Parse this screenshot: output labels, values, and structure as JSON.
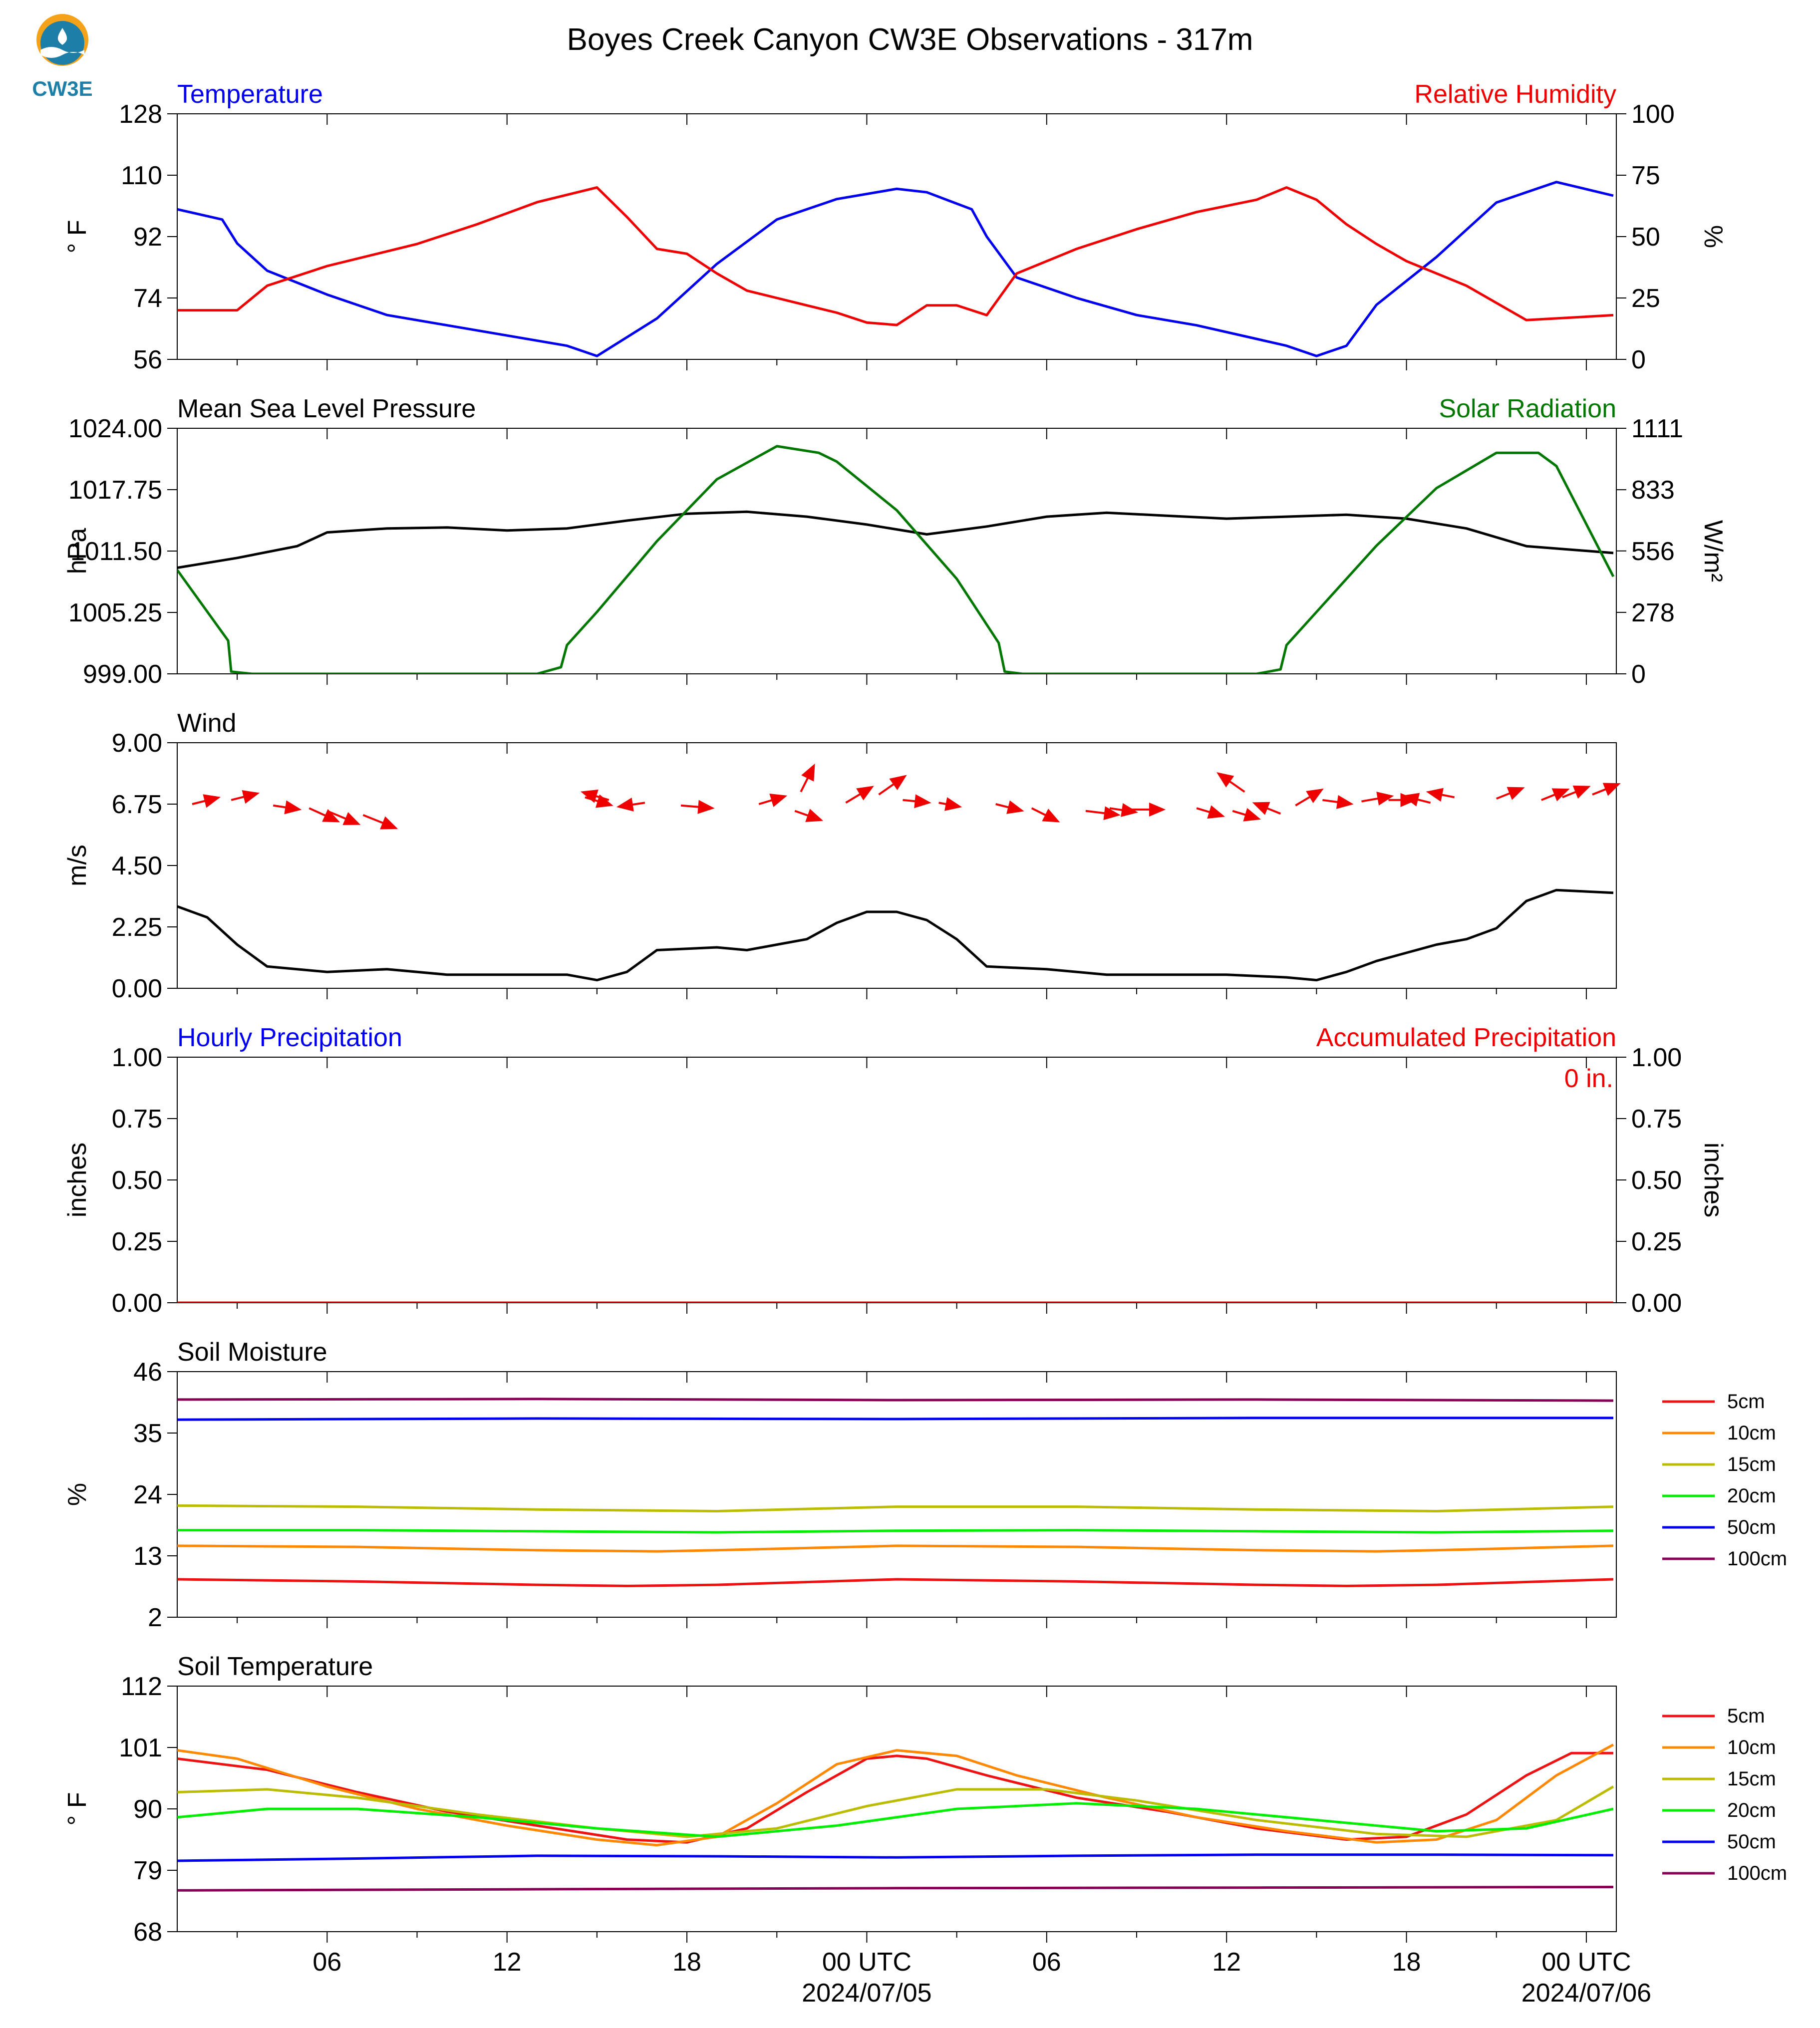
{
  "header": {
    "title": "Boyes Creek Canyon CW3E Observations - 317m",
    "logo_text": "CW3E"
  },
  "colors": {
    "blue": "#0000ee",
    "red": "#ee0000",
    "green": "#007700",
    "black": "#000000",
    "c5": "#ee1111",
    "c10": "#ff8800",
    "c15": "#bbbb00",
    "c20": "#00ee00",
    "c50": "#0000ee",
    "c100": "#880055"
  },
  "chart_data": [
    {
      "id": "temp_rh",
      "type": "line",
      "title_left": "Temperature",
      "title_right": "Relative Humidity",
      "ylabel_left": "° F",
      "ylabel_right": "%",
      "yticks_left": [
        "56",
        "74",
        "92",
        "110",
        "128"
      ],
      "yticks_right": [
        "0",
        "25",
        "50",
        "75",
        "100"
      ],
      "ylim_left": [
        56,
        128
      ],
      "ylim_right": [
        0,
        100
      ],
      "series": [
        {
          "name": "Temperature",
          "axis": "left",
          "color": "blue",
          "x": [
            0,
            1.5,
            2,
            3,
            5,
            7,
            9,
            11,
            13,
            14,
            16,
            18,
            20,
            22,
            24,
            25,
            26.5,
            27,
            28,
            30,
            32,
            34,
            36,
            37,
            38,
            39,
            40,
            42,
            44,
            46,
            47.9
          ],
          "y": [
            100,
            97,
            90,
            82,
            75,
            69,
            66,
            63,
            60,
            57,
            68,
            84,
            97,
            103,
            106,
            105,
            100,
            92,
            80,
            74,
            69,
            66,
            62,
            60,
            57,
            60,
            72,
            86,
            102,
            108,
            104
          ]
        },
        {
          "name": "Relative Humidity",
          "axis": "right",
          "color": "red",
          "x": [
            0,
            2,
            3,
            5,
            8,
            10,
            12,
            14,
            15,
            16,
            17,
            18,
            19,
            20,
            21,
            22,
            23,
            24,
            25,
            26,
            27,
            28,
            30,
            32,
            34,
            36,
            37,
            38,
            39,
            40,
            41,
            43,
            45,
            47.9
          ],
          "y": [
            20,
            20,
            30,
            38,
            47,
            55,
            64,
            70,
            58,
            45,
            43,
            35,
            28,
            25,
            22,
            19,
            15,
            14,
            22,
            22,
            18,
            35,
            45,
            53,
            60,
            65,
            70,
            65,
            55,
            47,
            40,
            30,
            16,
            18
          ]
        }
      ]
    },
    {
      "id": "pressure_solar",
      "type": "line",
      "title_left": "Mean Sea Level Pressure",
      "title_right": "Solar Radiation",
      "ylabel_left": "hPa",
      "ylabel_right": "W/m²",
      "yticks_left": [
        "999.00",
        "1005.25",
        "1011.50",
        "1017.75",
        "1024.00"
      ],
      "yticks_right": [
        "0",
        "278",
        "556",
        "833",
        "1111"
      ],
      "ylim_left": [
        999,
        1024
      ],
      "ylim_right": [
        0,
        1111
      ],
      "series": [
        {
          "name": "Mean Sea Level Pressure",
          "axis": "left",
          "color": "black",
          "x": [
            0,
            2,
            4,
            5,
            7,
            9,
            11,
            13,
            15,
            17,
            19,
            21,
            23,
            25,
            27,
            29,
            31,
            33,
            35,
            37,
            39,
            41,
            43,
            45,
            47.9
          ],
          "y": [
            1009.8,
            1010.8,
            1012.0,
            1013.4,
            1013.8,
            1013.9,
            1013.6,
            1013.8,
            1014.6,
            1015.3,
            1015.5,
            1015.0,
            1014.2,
            1013.2,
            1014.0,
            1015.0,
            1015.4,
            1015.1,
            1014.8,
            1015.0,
            1015.2,
            1014.8,
            1013.8,
            1012.0,
            1011.3
          ]
        },
        {
          "name": "Solar Radiation",
          "axis": "right",
          "color": "green",
          "x": [
            0,
            1.7,
            1.8,
            2.5,
            10,
            12,
            12.8,
            13,
            14,
            16,
            18,
            20,
            21.4,
            22,
            24,
            26,
            27.4,
            27.6,
            28.2,
            34,
            36,
            36.8,
            37,
            38,
            40,
            42,
            44,
            45.4,
            46,
            47.9
          ],
          "y": [
            470,
            150,
            10,
            0,
            0,
            0,
            30,
            130,
            280,
            600,
            880,
            1030,
            1000,
            960,
            740,
            430,
            140,
            10,
            0,
            0,
            0,
            20,
            130,
            280,
            580,
            840,
            1000,
            1000,
            940,
            440
          ]
        }
      ]
    },
    {
      "id": "wind",
      "type": "line",
      "title_left": "Wind",
      "ylabel_left": "m/s",
      "yticks_left": [
        "0.00",
        "2.25",
        "4.50",
        "6.75",
        "9.00"
      ],
      "ylim_left": [
        0,
        9
      ],
      "series": [
        {
          "name": "Wind",
          "axis": "left",
          "color": "black",
          "x": [
            0,
            1,
            2,
            3,
            5,
            7,
            9,
            11,
            13,
            14,
            15,
            16,
            18,
            19,
            20,
            21,
            22,
            23,
            24,
            25,
            26,
            27,
            29,
            31,
            33,
            35,
            37,
            38,
            39,
            40,
            41,
            42,
            43,
            44,
            45,
            46,
            47.9
          ],
          "y": [
            3.0,
            2.6,
            1.6,
            0.8,
            0.6,
            0.7,
            0.5,
            0.5,
            0.5,
            0.3,
            0.6,
            1.4,
            1.5,
            1.4,
            1.6,
            1.8,
            2.4,
            2.8,
            2.8,
            2.5,
            1.8,
            0.8,
            0.7,
            0.5,
            0.5,
            0.5,
            0.4,
            0.3,
            0.6,
            1.0,
            1.3,
            1.6,
            1.8,
            2.2,
            3.2,
            3.6,
            3.5
          ]
        },
        {
          "name": "Wind vectors",
          "type": "vector",
          "color": "red",
          "x": [
            0.5,
            1.8,
            3.2,
            4.4,
            5.0,
            6.2,
            13.6,
            14.4,
            15.6,
            16.8,
            19.4,
            20.6,
            20.8,
            22.3,
            23.4,
            24.2,
            25.4,
            27.3,
            28.5,
            30.3,
            31.1,
            31.8,
            34.0,
            35.2,
            35.6,
            36.8,
            37.3,
            38.2,
            39.5,
            40.4,
            41.8,
            42.6,
            44.0,
            45.5,
            46.2,
            47.2
          ],
          "y": [
            6.75,
            6.9,
            6.7,
            6.6,
            6.5,
            6.35,
            7.0,
            6.9,
            6.8,
            6.7,
            6.75,
            6.5,
            7.2,
            6.8,
            7.1,
            6.9,
            6.8,
            6.75,
            6.6,
            6.5,
            6.6,
            6.55,
            6.6,
            6.5,
            7.2,
            6.4,
            6.7,
            6.9,
            6.85,
            6.9,
            6.8,
            7.0,
            6.95,
            6.9,
            7.0,
            7.1
          ],
          "u": [
            2,
            2,
            2,
            2.2,
            2.4,
            2.5,
            2,
            -2,
            -2,
            2.4,
            2,
            2,
            1,
            2,
            2,
            2,
            1.6,
            2,
            2,
            2.5,
            2,
            2.5,
            2,
            2,
            -2,
            -2,
            2,
            2.2,
            2.3,
            2,
            -2,
            -2,
            2,
            2,
            2,
            2
          ],
          "v": [
            0.5,
            0.5,
            -0.3,
            -1,
            -1,
            -1,
            -0.6,
            0.6,
            -0.3,
            -0.2,
            0.6,
            -0.7,
            2,
            1.2,
            1.4,
            -0.2,
            -0.3,
            -0.5,
            -1,
            -0.3,
            -0.3,
            0,
            -0.6,
            -0.6,
            1.4,
            0.8,
            1.2,
            -0.3,
            0.4,
            0,
            0.5,
            0.4,
            0.8,
            0.8,
            0.8,
            0.8
          ]
        }
      ]
    },
    {
      "id": "precip",
      "type": "line",
      "title_left": "Hourly Precipitation",
      "title_right": "Accumulated Precipitation",
      "annotation": "0 in.",
      "ylabel_left": "inches",
      "ylabel_right": "inches",
      "yticks_left": [
        "0.00",
        "0.25",
        "0.50",
        "0.75",
        "1.00"
      ],
      "yticks_right": [
        "0.00",
        "0.25",
        "0.50",
        "0.75",
        "1.00"
      ],
      "ylim_left": [
        0,
        1
      ],
      "ylim_right": [
        0,
        1
      ],
      "series": [
        {
          "name": "Hourly Precipitation",
          "axis": "left",
          "color": "blue",
          "x": [
            0,
            47.9
          ],
          "y": [
            0,
            0
          ]
        },
        {
          "name": "Accumulated Precipitation",
          "axis": "right",
          "color": "red",
          "x": [
            0,
            47.9
          ],
          "y": [
            0,
            0
          ]
        }
      ]
    },
    {
      "id": "soil_moisture",
      "type": "line",
      "title_left": "Soil Moisture",
      "ylabel_left": "%",
      "yticks_left": [
        "2",
        "13",
        "24",
        "35",
        "46"
      ],
      "ylim_left": [
        2,
        46
      ],
      "legend_position": "right",
      "series": [
        {
          "name": "5cm",
          "color": "c5",
          "x": [
            0,
            6,
            12,
            15,
            18,
            24,
            30,
            36,
            39,
            42,
            47.9
          ],
          "y": [
            8.8,
            8.4,
            7.8,
            7.6,
            7.8,
            8.8,
            8.4,
            7.8,
            7.6,
            7.8,
            8.8
          ]
        },
        {
          "name": "10cm",
          "color": "c10",
          "x": [
            0,
            6,
            12,
            16,
            18,
            24,
            30,
            36,
            40,
            42,
            47.9
          ],
          "y": [
            14.8,
            14.6,
            14.0,
            13.8,
            14.0,
            14.8,
            14.6,
            14.0,
            13.8,
            14.0,
            14.8
          ]
        },
        {
          "name": "15cm",
          "color": "c15",
          "x": [
            0,
            6,
            12,
            18,
            24,
            30,
            36,
            42,
            47.9
          ],
          "y": [
            22.0,
            21.8,
            21.3,
            21.0,
            21.8,
            21.8,
            21.3,
            21.0,
            21.8
          ]
        },
        {
          "name": "20cm",
          "color": "c20",
          "x": [
            0,
            6,
            12,
            18,
            24,
            30,
            36,
            42,
            47.9
          ],
          "y": [
            17.6,
            17.6,
            17.4,
            17.2,
            17.5,
            17.6,
            17.4,
            17.2,
            17.5
          ]
        },
        {
          "name": "50cm",
          "color": "c50",
          "x": [
            0,
            12,
            24,
            36,
            47.9
          ],
          "y": [
            37.4,
            37.6,
            37.5,
            37.7,
            37.7
          ]
        },
        {
          "name": "100cm",
          "color": "c100",
          "x": [
            0,
            12,
            24,
            36,
            47.9
          ],
          "y": [
            41.0,
            41.1,
            40.9,
            41.0,
            40.8
          ]
        }
      ]
    },
    {
      "id": "soil_temp",
      "type": "line",
      "title_left": "Soil Temperature",
      "ylabel_left": "° F",
      "yticks_left": [
        "68",
        "79",
        "90",
        "101",
        "112"
      ],
      "ylim_left": [
        68,
        112
      ],
      "legend_position": "right",
      "series": [
        {
          "name": "5cm",
          "color": "c5",
          "x": [
            0,
            3,
            6,
            9,
            12,
            15,
            17,
            19,
            21,
            23,
            24,
            25,
            27,
            30,
            33,
            36,
            39,
            41,
            43,
            45,
            46.5,
            47.9
          ],
          "y": [
            99,
            97,
            93,
            89.5,
            87,
            84.5,
            84,
            86.5,
            93,
            99,
            99.5,
            99,
            96,
            92,
            89.5,
            86.5,
            84.5,
            85,
            89,
            96,
            100,
            100
          ]
        },
        {
          "name": "10cm",
          "color": "c10",
          "x": [
            0,
            2,
            5,
            8,
            11,
            14,
            16,
            18,
            20,
            22,
            24,
            26,
            28,
            31,
            34,
            37,
            40,
            42,
            44,
            46,
            47.9
          ],
          "y": [
            100.5,
            99,
            94,
            90,
            87,
            84.5,
            83.5,
            85,
            91,
            98,
            100.5,
            99.5,
            96,
            92,
            88.5,
            86,
            84,
            84.5,
            88,
            96,
            101.5
          ]
        },
        {
          "name": "15cm",
          "color": "c15",
          "x": [
            0,
            3,
            6,
            10,
            14,
            17,
            20,
            23,
            26,
            29,
            32,
            36,
            40,
            43,
            46,
            47.9
          ],
          "y": [
            93,
            93.5,
            92,
            89,
            86.5,
            85,
            86.5,
            90.5,
            93.5,
            93.5,
            91.5,
            88,
            85.5,
            85,
            88,
            94
          ]
        },
        {
          "name": "20cm",
          "color": "c20",
          "x": [
            0,
            3,
            6,
            10,
            14,
            18,
            22,
            26,
            30,
            34,
            38,
            42,
            45,
            47.9
          ],
          "y": [
            88.5,
            90,
            90,
            88.5,
            86.5,
            85,
            87,
            90,
            91,
            90,
            88,
            86,
            86.5,
            90
          ]
        },
        {
          "name": "50cm",
          "color": "c50",
          "x": [
            0,
            6,
            12,
            18,
            24,
            30,
            36,
            42,
            47.9
          ],
          "y": [
            80.7,
            81.1,
            81.6,
            81.5,
            81.3,
            81.6,
            81.8,
            81.8,
            81.7
          ]
        },
        {
          "name": "100cm",
          "color": "c100",
          "x": [
            0,
            12,
            24,
            36,
            47.9
          ],
          "y": [
            75.4,
            75.6,
            75.8,
            75.9,
            76.0
          ]
        }
      ]
    }
  ],
  "x_axis": {
    "xlim": [
      0,
      48
    ],
    "major_ticks": [
      5,
      11,
      17,
      23,
      29,
      35,
      41,
      47
    ],
    "major_labels": [
      "06",
      "12",
      "18",
      "00 UTC",
      "06",
      "12",
      "18",
      "00 UTC"
    ],
    "minor_ticks": [
      2,
      8,
      14,
      20,
      26,
      32,
      38,
      44
    ],
    "date_labels": [
      {
        "x": 23,
        "text": "2024/07/05"
      },
      {
        "x": 47,
        "text": "2024/07/06"
      }
    ]
  }
}
